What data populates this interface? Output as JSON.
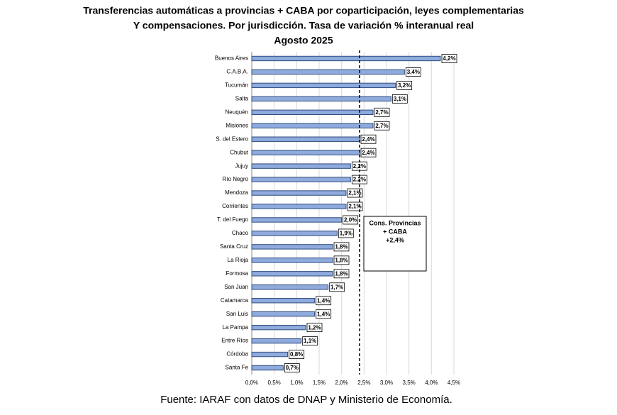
{
  "chart_data": {
    "type": "barh",
    "title_lines": [
      "Transferencias automáticas  a provincias + CABA por coparticipación,  leyes complementarias",
      "Y compensaciones.  Por jurisdicción. Tasa de variación % interanual  real",
      "Agosto 2025"
    ],
    "categories": [
      "Buenos Aires",
      "C.A.B.A.",
      "Tucumán",
      "Salta",
      "Neuquén",
      "Misiones",
      "S. del Estero",
      "Chubut",
      "Jujuy",
      "Río Negro",
      "Mendoza",
      "Corrientes",
      "T. del Fuego",
      "Chaco",
      "Santa Cruz",
      "La Rioja",
      "Formosa",
      "San Juan",
      "Catamarca",
      "San Luis",
      "La Pampa",
      "Entre Ríos",
      "Córdoba",
      "Santa Fe"
    ],
    "values": [
      4.2,
      3.4,
      3.2,
      3.1,
      2.7,
      2.7,
      2.4,
      2.4,
      2.2,
      2.2,
      2.1,
      2.1,
      2.0,
      1.9,
      1.8,
      1.8,
      1.8,
      1.7,
      1.4,
      1.4,
      1.2,
      1.1,
      0.8,
      0.7
    ],
    "value_labels": [
      "4,2%",
      "3,4%",
      "3,2%",
      "3,1%",
      "2,7%",
      "2,7%",
      "2,4%",
      "2,4%",
      "2,2%",
      "2,2%",
      "2,1%",
      "2,1%",
      "2,0%",
      "1,9%",
      "1,8%",
      "1,8%",
      "1,8%",
      "1,7%",
      "1,4%",
      "1,4%",
      "1,2%",
      "1,1%",
      "0,8%",
      "0,7%"
    ],
    "color": "#8faadc",
    "xlim": [
      0,
      4.5
    ],
    "xticks": [
      {
        "value": 0,
        "label": "0,0%"
      },
      {
        "value": 0.5,
        "label": "0,5%"
      },
      {
        "value": 1,
        "label": "1,0%"
      },
      {
        "value": 1.5,
        "label": "1,5%"
      },
      {
        "value": 2,
        "label": "2,0%"
      },
      {
        "value": 2.5,
        "label": "2,5%"
      },
      {
        "value": 3,
        "label": "3,0%"
      },
      {
        "value": 3.5,
        "label": "3,5%"
      },
      {
        "value": 4,
        "label": "4,0%"
      },
      {
        "value": 4.5,
        "label": "4,5%"
      }
    ],
    "grid": true,
    "reference_line": {
      "value": 2.4,
      "label_lines": [
        "Cons. Provincias",
        "+ CABA",
        "+2,4%"
      ]
    },
    "source": "Fuente: IARAF con datos de DNAP y Ministerio de Economía."
  }
}
